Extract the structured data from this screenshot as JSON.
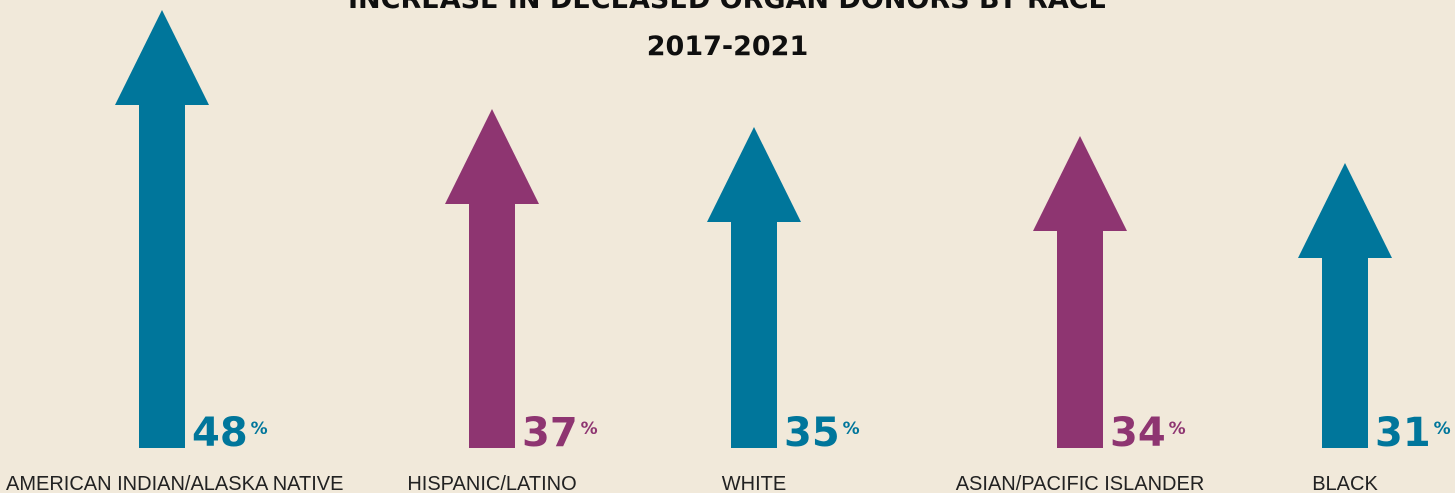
{
  "chart_data": {
    "type": "bar",
    "title": "INCREASE IN DECEASED ORGAN DONORS BY RACE",
    "subtitle": "2017-2021",
    "categories": [
      "AMERICAN INDIAN/ALASKA NATIVE",
      "HISPANIC/LATINO",
      "WHITE",
      "ASIAN/PACIFIC ISLANDER",
      "BLACK"
    ],
    "values": [
      48,
      37,
      35,
      34,
      31
    ],
    "value_labels": [
      "48",
      "37",
      "35",
      "34",
      "31"
    ],
    "unit": "%",
    "colors": [
      "#00769b",
      "#8e3571",
      "#00769b",
      "#8e3571",
      "#00769b"
    ]
  }
}
